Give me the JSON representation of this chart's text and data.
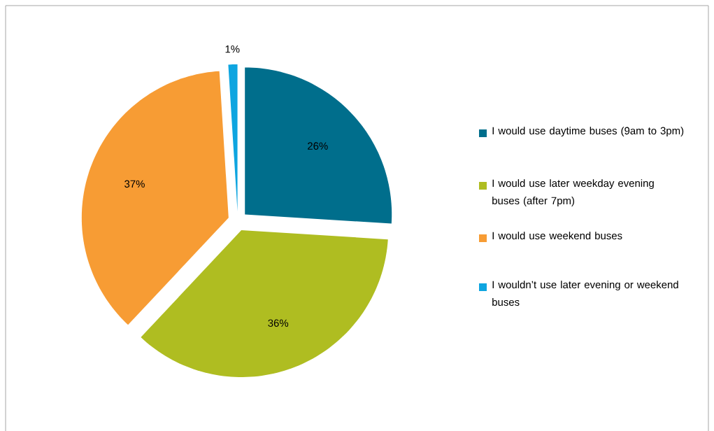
{
  "chart_data": {
    "type": "pie",
    "categories": [
      "I would use daytime buses (9am to 3pm)",
      "I would use later weekday evening buses (after 7pm)",
      "I would use weekend buses",
      "I wouldn’t use later evening or weekend buses"
    ],
    "values": [
      26,
      36,
      37,
      1
    ],
    "value_labels": [
      "26%",
      "36%",
      "37%",
      "1%"
    ],
    "colors": [
      "#006e8c",
      "#afbd21",
      "#f79c34",
      "#0ea5e0"
    ],
    "legend": "right"
  }
}
